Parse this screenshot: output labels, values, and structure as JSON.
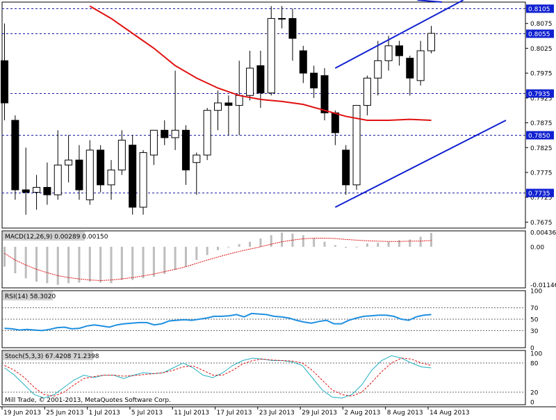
{
  "chart_data": {
    "type": "candlestick",
    "x_tick_labels": [
      "19 Jun 2013",
      "25 Jun 2013",
      "1 Jul 2013",
      "5 Jul 2013",
      "11 Jul 2013",
      "17 Jul 2013",
      "23 Jul 2013",
      "29 Jul 2013",
      "2 Aug 2013",
      "8 Aug 2013",
      "14 Aug 2013"
    ],
    "price_panel": {
      "y_ticks": [
        "0.8075",
        "0.8025",
        "0.7975",
        "0.7925",
        "0.7875",
        "0.7825",
        "0.7775",
        "0.7725",
        "0.7675"
      ],
      "level_labels": [
        "0.8105",
        "0.8055",
        "0.7935",
        "0.7850",
        "0.7735"
      ],
      "ylim": [
        0.7663,
        0.8118
      ],
      "candles": [
        {
          "o": 0.8,
          "h": 0.8075,
          "l": 0.788,
          "c": 0.7915
        },
        {
          "o": 0.788,
          "h": 0.789,
          "l": 0.772,
          "c": 0.774
        },
        {
          "o": 0.774,
          "h": 0.7825,
          "l": 0.769,
          "c": 0.7735
        },
        {
          "o": 0.7735,
          "h": 0.777,
          "l": 0.77,
          "c": 0.7745
        },
        {
          "o": 0.7745,
          "h": 0.7795,
          "l": 0.771,
          "c": 0.773
        },
        {
          "o": 0.773,
          "h": 0.786,
          "l": 0.772,
          "c": 0.779
        },
        {
          "o": 0.779,
          "h": 0.785,
          "l": 0.7755,
          "c": 0.78
        },
        {
          "o": 0.78,
          "h": 0.783,
          "l": 0.772,
          "c": 0.774
        },
        {
          "o": 0.772,
          "h": 0.784,
          "l": 0.771,
          "c": 0.782
        },
        {
          "o": 0.782,
          "h": 0.783,
          "l": 0.7735,
          "c": 0.775
        },
        {
          "o": 0.775,
          "h": 0.78,
          "l": 0.772,
          "c": 0.778
        },
        {
          "o": 0.778,
          "h": 0.786,
          "l": 0.777,
          "c": 0.784
        },
        {
          "o": 0.783,
          "h": 0.785,
          "l": 0.769,
          "c": 0.7705
        },
        {
          "o": 0.7705,
          "h": 0.782,
          "l": 0.769,
          "c": 0.7815
        },
        {
          "o": 0.781,
          "h": 0.786,
          "l": 0.779,
          "c": 0.786
        },
        {
          "o": 0.786,
          "h": 0.788,
          "l": 0.783,
          "c": 0.7845
        },
        {
          "o": 0.7845,
          "h": 0.798,
          "l": 0.782,
          "c": 0.786
        },
        {
          "o": 0.786,
          "h": 0.787,
          "l": 0.775,
          "c": 0.778
        },
        {
          "o": 0.7795,
          "h": 0.7815,
          "l": 0.773,
          "c": 0.781
        },
        {
          "o": 0.781,
          "h": 0.7905,
          "l": 0.78,
          "c": 0.79
        },
        {
          "o": 0.79,
          "h": 0.794,
          "l": 0.786,
          "c": 0.7915
        },
        {
          "o": 0.7915,
          "h": 0.793,
          "l": 0.785,
          "c": 0.791
        },
        {
          "o": 0.791,
          "h": 0.8,
          "l": 0.785,
          "c": 0.793
        },
        {
          "o": 0.793,
          "h": 0.802,
          "l": 0.792,
          "c": 0.7985
        },
        {
          "o": 0.799,
          "h": 0.802,
          "l": 0.7905,
          "c": 0.7935
        },
        {
          "o": 0.7935,
          "h": 0.811,
          "l": 0.793,
          "c": 0.8085
        },
        {
          "o": 0.8085,
          "h": 0.811,
          "l": 0.8065,
          "c": 0.8085
        },
        {
          "o": 0.8085,
          "h": 0.8105,
          "l": 0.8,
          "c": 0.8045
        },
        {
          "o": 0.802,
          "h": 0.803,
          "l": 0.7955,
          "c": 0.7975
        },
        {
          "o": 0.7975,
          "h": 0.799,
          "l": 0.7925,
          "c": 0.7945
        },
        {
          "o": 0.797,
          "h": 0.7985,
          "l": 0.788,
          "c": 0.7895
        },
        {
          "o": 0.7895,
          "h": 0.79,
          "l": 0.783,
          "c": 0.7855
        },
        {
          "o": 0.782,
          "h": 0.783,
          "l": 0.773,
          "c": 0.775
        },
        {
          "o": 0.775,
          "h": 0.791,
          "l": 0.774,
          "c": 0.791
        },
        {
          "o": 0.791,
          "h": 0.797,
          "l": 0.789,
          "c": 0.7965
        },
        {
          "o": 0.7965,
          "h": 0.804,
          "l": 0.793,
          "c": 0.8
        },
        {
          "o": 0.8,
          "h": 0.805,
          "l": 0.798,
          "c": 0.803
        },
        {
          "o": 0.803,
          "h": 0.804,
          "l": 0.799,
          "c": 0.801
        },
        {
          "o": 0.8005,
          "h": 0.801,
          "l": 0.793,
          "c": 0.7965
        },
        {
          "o": 0.796,
          "h": 0.804,
          "l": 0.795,
          "c": 0.802
        },
        {
          "o": 0.802,
          "h": 0.807,
          "l": 0.8015,
          "c": 0.8055
        }
      ],
      "ma_red": [
        {
          "i": 8.0,
          "v": 0.811
        },
        {
          "i": 10.0,
          "v": 0.8085
        },
        {
          "i": 12.0,
          "v": 0.8055
        },
        {
          "i": 14.0,
          "v": 0.8025
        },
        {
          "i": 16.0,
          "v": 0.799
        },
        {
          "i": 18.0,
          "v": 0.7965
        },
        {
          "i": 20.0,
          "v": 0.7945
        },
        {
          "i": 22.0,
          "v": 0.793
        },
        {
          "i": 24.0,
          "v": 0.7922
        },
        {
          "i": 26.0,
          "v": 0.7918
        },
        {
          "i": 28.0,
          "v": 0.7912
        },
        {
          "i": 30.0,
          "v": 0.79
        },
        {
          "i": 32.0,
          "v": 0.7888
        },
        {
          "i": 34.0,
          "v": 0.788
        },
        {
          "i": 36.0,
          "v": 0.788
        },
        {
          "i": 38.0,
          "v": 0.7882
        },
        {
          "i": 40.0,
          "v": 0.788
        }
      ],
      "trend_lines": [
        {
          "from": {
            "i": 31.0,
            "v": 0.7985
          },
          "to": {
            "i": 43.0,
            "v": 0.8122
          }
        },
        {
          "from": {
            "i": 31.0,
            "v": 0.7705
          },
          "to": {
            "i": 47.0,
            "v": 0.788
          }
        },
        {
          "from": {
            "i": 38.7,
            "v": 0.8122
          },
          "to": {
            "i": 41.0,
            "v": 0.8118
          }
        }
      ]
    },
    "macd": {
      "label": "MACD(12,26,9) 0.00289 0.00150",
      "y_ticks": [
        "0.00436",
        "0.00",
        "-0.01146"
      ],
      "ylim": [
        -0.0124,
        0.0048
      ],
      "histogram": [
        -0.006,
        -0.008,
        -0.0095,
        -0.0105,
        -0.011,
        -0.0115,
        -0.011,
        -0.0108,
        -0.0105,
        -0.0108,
        -0.011,
        -0.01,
        -0.01,
        -0.0095,
        -0.009,
        -0.0082,
        -0.007,
        -0.006,
        -0.004,
        -0.0025,
        -0.001,
        0.0,
        0.0008,
        0.0015,
        0.0025,
        0.0035,
        0.0043,
        0.004,
        0.0035,
        0.0025,
        0.0015,
        0.0005,
        -0.0003,
        0.0,
        0.001,
        0.0012,
        0.0015,
        0.002,
        0.0022,
        0.003,
        0.0042
      ],
      "signal": [
        -0.002,
        -0.004,
        -0.0055,
        -0.0068,
        -0.0078,
        -0.0087,
        -0.0093,
        -0.0097,
        -0.01,
        -0.0102,
        -0.01,
        -0.0097,
        -0.0093,
        -0.0088,
        -0.0082,
        -0.0075,
        -0.0068,
        -0.006,
        -0.005,
        -0.004,
        -0.0031,
        -0.0022,
        -0.0014,
        -0.0007,
        0.0,
        0.0008,
        0.0015,
        0.002,
        0.0024,
        0.0026,
        0.0026,
        0.0025,
        0.0022,
        0.002,
        0.0018,
        0.0017,
        0.0016,
        0.0016,
        0.0017,
        0.0017,
        0.0019
      ]
    },
    "rsi": {
      "label": "RSI(14) 58.3020",
      "y_ticks": [
        "100",
        "70",
        "50",
        "30",
        "0"
      ],
      "ylim": [
        0,
        100
      ],
      "values": [
        34,
        33,
        31,
        32,
        31,
        30,
        32,
        35,
        36,
        33,
        34,
        38,
        40,
        38,
        36,
        40,
        42,
        43,
        44,
        44,
        40,
        42,
        47,
        48,
        49,
        48,
        50,
        52,
        55,
        55,
        56,
        58,
        54,
        60,
        59,
        58,
        55,
        54,
        52,
        48,
        45,
        43,
        46,
        48,
        42,
        42,
        48,
        52,
        55,
        56,
        57,
        57,
        55,
        50,
        48,
        54,
        57,
        58
      ]
    },
    "stoch": {
      "label": "Stoch(5,3,3) 67.4208 71.2398",
      "y_ticks": [
        "100",
        "80",
        "20",
        "0"
      ],
      "ylim": [
        0,
        100
      ],
      "main": [
        70,
        55,
        35,
        15,
        8,
        15,
        30,
        45,
        55,
        50,
        55,
        55,
        48,
        55,
        60,
        58,
        60,
        70,
        80,
        70,
        55,
        50,
        60,
        75,
        85,
        90,
        88,
        85,
        85,
        82,
        75,
        50,
        25,
        10,
        8,
        15,
        35,
        65,
        85,
        95,
        90,
        80,
        72,
        70
      ],
      "signal": [
        75,
        65,
        50,
        30,
        15,
        12,
        20,
        35,
        48,
        52,
        55,
        55,
        53,
        54,
        56,
        58,
        60,
        65,
        72,
        74,
        65,
        55,
        55,
        65,
        78,
        85,
        88,
        86,
        85,
        84,
        80,
        65,
        45,
        25,
        15,
        12,
        20,
        40,
        62,
        80,
        90,
        88,
        80,
        75
      ]
    },
    "footer_text": "Mill Trade, © 2001-2013, MetaQuotes Software Corp.",
    "colors": {
      "up_body": "#ffffff",
      "down_body": "#000000",
      "ma": "#e01010",
      "trend": "#1020d0",
      "level": "#1a1aa0",
      "macd_hist": "#bdbdbd",
      "macd_signal": "#e01010",
      "rsi": "#1e8fe0",
      "stoch_main": "#20b0c0",
      "stoch_signal": "#e01010",
      "label_bg": "#1020d0"
    }
  }
}
